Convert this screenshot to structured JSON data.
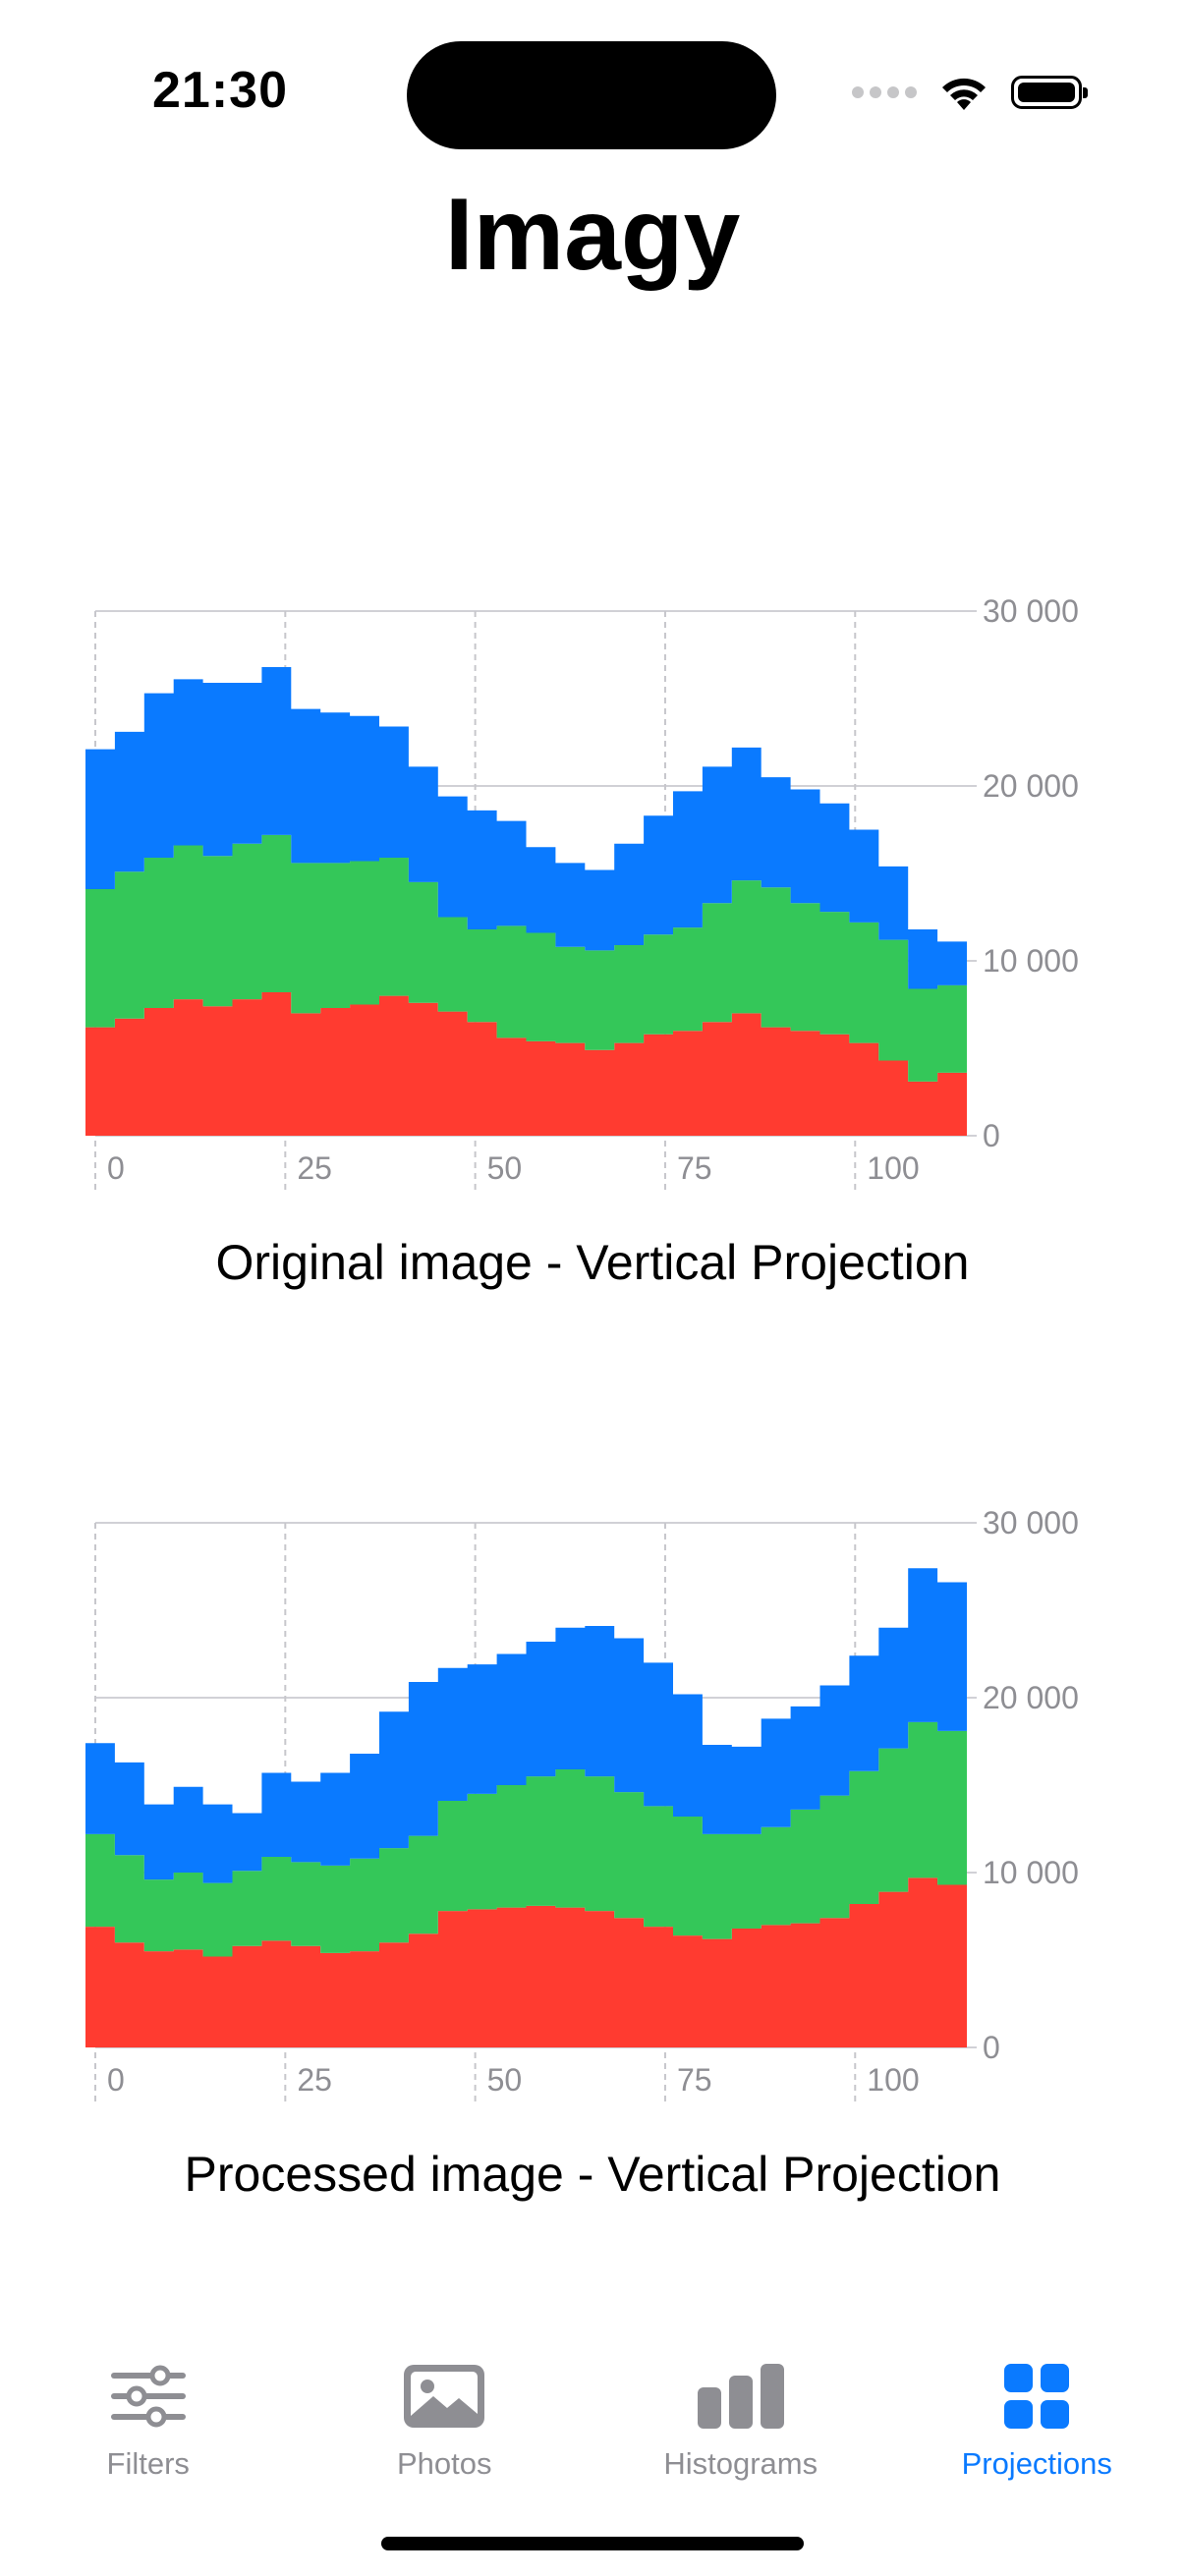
{
  "status_bar": {
    "time": "21:30"
  },
  "app": {
    "title": "Imagy"
  },
  "charts": [
    {
      "caption": "Original image - Vertical Projection"
    },
    {
      "caption": "Processed image - Vertical Projection"
    }
  ],
  "chart_data": [
    {
      "type": "area",
      "stacked": true,
      "x": [
        0,
        4,
        8,
        12,
        16,
        20,
        24,
        28,
        32,
        36,
        40,
        44,
        48,
        52,
        56,
        60,
        64,
        68,
        72,
        76,
        80,
        84,
        88,
        92,
        96,
        100,
        104,
        108,
        112,
        116
      ],
      "x_ticks": [
        "0",
        "25",
        "50",
        "75",
        "100"
      ],
      "y_ticks": [
        "0",
        "10 000",
        "20 000",
        "30 000"
      ],
      "ylim": [
        0,
        30000
      ],
      "xlim": [
        0,
        116
      ],
      "grid": true,
      "series": [
        {
          "color": "#ff3b30",
          "values": [
            6200,
            6700,
            7300,
            7800,
            7400,
            7800,
            8200,
            7000,
            7300,
            7500,
            8000,
            7600,
            7100,
            6500,
            5600,
            5400,
            5300,
            4900,
            5300,
            5800,
            6000,
            6500,
            7000,
            6200,
            6000,
            5800,
            5300,
            4300,
            3100,
            3600
          ]
        },
        {
          "color": "#34c759",
          "values": [
            7900,
            8400,
            8600,
            8800,
            8600,
            8900,
            9000,
            8600,
            8300,
            8200,
            7900,
            6900,
            5400,
            5300,
            6400,
            6200,
            5500,
            5700,
            5600,
            5700,
            5900,
            6800,
            7600,
            8000,
            7300,
            7000,
            6900,
            6900,
            5300,
            5000
          ]
        },
        {
          "color": "#0a7aff",
          "values": [
            8000,
            8000,
            9400,
            9500,
            9900,
            9200,
            9600,
            8800,
            8600,
            8300,
            7500,
            6600,
            6900,
            6800,
            6000,
            4900,
            4800,
            4600,
            5800,
            6800,
            7800,
            7800,
            7600,
            6300,
            6500,
            6200,
            5300,
            4200,
            3400,
            2500
          ]
        }
      ]
    },
    {
      "type": "area",
      "stacked": true,
      "x": [
        0,
        4,
        8,
        12,
        16,
        20,
        24,
        28,
        32,
        36,
        40,
        44,
        48,
        52,
        56,
        60,
        64,
        68,
        72,
        76,
        80,
        84,
        88,
        92,
        96,
        100,
        104,
        108,
        112,
        116
      ],
      "x_ticks": [
        "0",
        "25",
        "50",
        "75",
        "100"
      ],
      "y_ticks": [
        "0",
        "10 000",
        "20 000",
        "30 000"
      ],
      "ylim": [
        0,
        30000
      ],
      "xlim": [
        0,
        116
      ],
      "grid": true,
      "series": [
        {
          "color": "#ff3b30",
          "values": [
            6900,
            6000,
            5500,
            5600,
            5200,
            5800,
            6100,
            5800,
            5400,
            5500,
            6000,
            6500,
            7800,
            7900,
            8000,
            8100,
            8000,
            7800,
            7400,
            6900,
            6400,
            6200,
            6800,
            7000,
            7100,
            7400,
            8200,
            8900,
            9700,
            9300
          ]
        },
        {
          "color": "#34c759",
          "values": [
            5300,
            5000,
            4100,
            4400,
            4200,
            4300,
            4800,
            4800,
            5000,
            5300,
            5400,
            5600,
            6300,
            6600,
            7000,
            7400,
            7900,
            7700,
            7200,
            6900,
            6800,
            6000,
            5400,
            5600,
            6500,
            7000,
            7600,
            8200,
            8900,
            8800
          ]
        },
        {
          "color": "#0a7aff",
          "values": [
            5200,
            5300,
            4300,
            4900,
            4500,
            3300,
            4800,
            4600,
            5300,
            6000,
            7800,
            8800,
            7600,
            7400,
            7500,
            7700,
            8100,
            8600,
            8800,
            8200,
            7000,
            5100,
            5000,
            6200,
            5900,
            6300,
            6600,
            6900,
            8800,
            8500
          ]
        }
      ]
    }
  ],
  "tab_bar": {
    "tabs": [
      {
        "label": "Filters",
        "icon": "sliders-icon"
      },
      {
        "label": "Photos",
        "icon": "photo-icon"
      },
      {
        "label": "Histograms",
        "icon": "bar-chart-icon"
      },
      {
        "label": "Projections",
        "icon": "grid-icon"
      }
    ],
    "active_index": 3,
    "active_color": "#0a7aff",
    "inactive_color": "#8e8e93"
  }
}
